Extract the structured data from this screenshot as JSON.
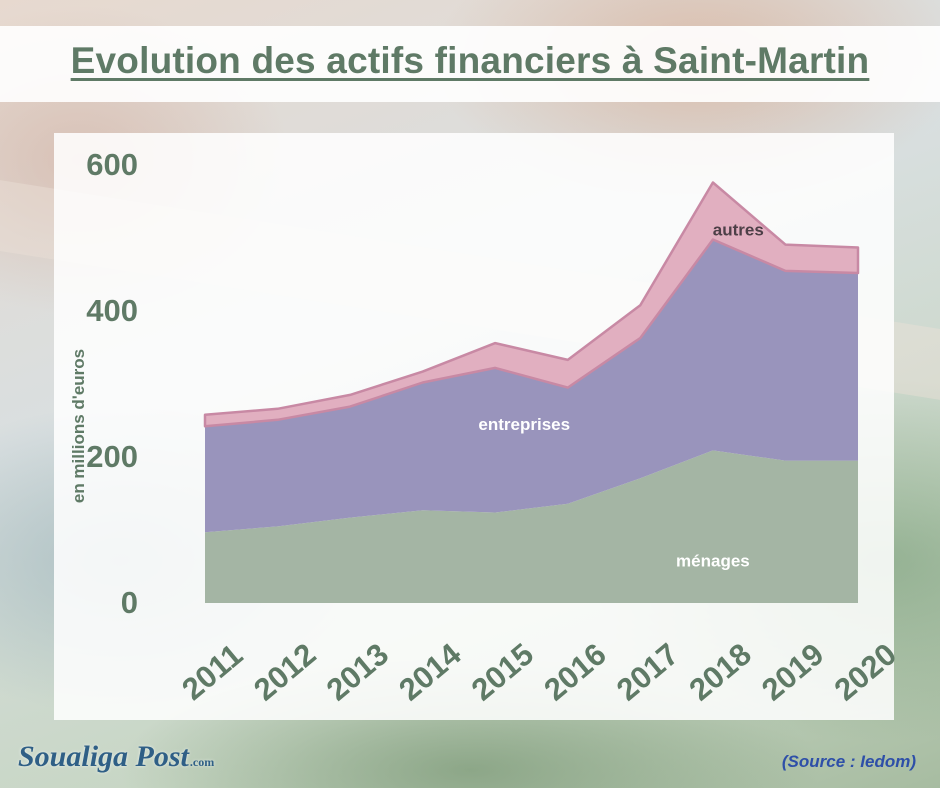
{
  "title": "Evolution des actifs financiers à Saint-Martin",
  "source": "(Source : Iedom)",
  "logo": {
    "name": "Soualiga Post",
    "suffix": ".com"
  },
  "colors": {
    "menages": "#a4b5a4",
    "entreprises": "#9994bc",
    "autres": "#e1afc0",
    "autres_edge": "#c889a4",
    "axis_text": "#5f7a66",
    "area_labels": "#ffffff",
    "autres_label": "#4d3f47",
    "source_text": "#2e4fa8",
    "logo_text": "#2f5f86"
  },
  "chart_data": {
    "type": "area",
    "stacked": true,
    "title": "Evolution des actifs financiers à Saint-Martin",
    "xlabel": "",
    "ylabel": "en millions d'euros",
    "ylim": [
      0,
      600
    ],
    "yticks": [
      "0",
      "200",
      "400",
      "600"
    ],
    "categories": [
      "2011",
      "2012",
      "2013",
      "2014",
      "2015",
      "2016",
      "2017",
      "2018",
      "2019",
      "2020"
    ],
    "series": [
      {
        "name": "ménages",
        "key": "menages",
        "values": [
          97,
          105,
          117,
          127,
          124,
          136,
          171,
          209,
          195,
          195
        ]
      },
      {
        "name": "entreprises",
        "key": "entreprises",
        "values": [
          145,
          146,
          152,
          175,
          198,
          159,
          192,
          289,
          260,
          257
        ]
      },
      {
        "name": "autres",
        "key": "autres",
        "values": [
          16,
          15,
          16,
          15,
          34,
          38,
          45,
          78,
          36,
          35
        ]
      }
    ],
    "legend": "inline labels on areas",
    "grid": false,
    "source": "(Source : Iedom)"
  }
}
